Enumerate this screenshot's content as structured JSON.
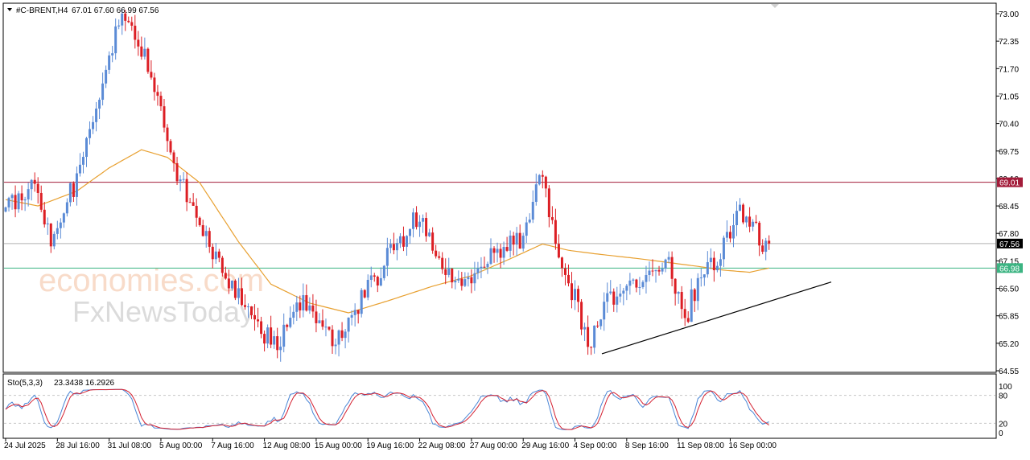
{
  "chart_header": {
    "symbol_timeframe": "#C-BRENT,H4",
    "ohlc": "67.01 67.60 66.99 67.56"
  },
  "indicator": {
    "name": "Sto(5,3,3)",
    "values": "23.3438 16.2926"
  },
  "watermark": {
    "line1": "economies.com",
    "line2": "FxNewsToday"
  },
  "colors": {
    "background": "#ffffff",
    "bull": "#5b8bd6",
    "bear": "#dc1e24",
    "ma": "#e8a030",
    "resistance": "#a31c3a",
    "current_price": "#b0b0b0",
    "support_ma_label": "#3cb482",
    "trendline": "#000000",
    "stoch_main": "#4a86d6",
    "stoch_signal": "#d42030",
    "grid_dash": "#c8c8c8"
  },
  "chart_data": {
    "type": "candlestick",
    "symbol": "#C-BRENT",
    "timeframe": "H4",
    "price_axis_ticks": [
      73.0,
      72.35,
      71.7,
      71.05,
      70.4,
      69.75,
      69.1,
      68.45,
      67.8,
      67.15,
      66.5,
      65.85,
      65.2,
      64.55
    ],
    "price_axis_labels": [
      "73.00",
      "72.35",
      "71.70",
      "71.05",
      "70.40",
      "69.75",
      "69.10",
      "68.45",
      "67.80",
      "67.15",
      "66.50",
      "65.85",
      "65.20",
      "64.55"
    ],
    "ylim": [
      64.55,
      73.05
    ],
    "time_labels": [
      "24 Jul 2025",
      "28 Jul 16:00",
      "31 Jul 08:00",
      "5 Aug 00:00",
      "7 Aug 16:00",
      "12 Aug 08:00",
      "15 Aug 00:00",
      "19 Aug 16:00",
      "22 Aug 08:00",
      "27 Aug 00:00",
      "29 Aug 16:00",
      "4 Sep 00:00",
      "8 Sep 16:00",
      "11 Sep 08:00",
      "16 Sep 00:00"
    ],
    "horizontal_lines": [
      {
        "price": 69.01,
        "label": "69.01",
        "role": "resistance"
      },
      {
        "price": 67.56,
        "label": "67.56",
        "role": "current"
      },
      {
        "price": 66.98,
        "label": "66.98",
        "role": "ma"
      }
    ],
    "trendline": {
      "from_price": 64.95,
      "to_price": 66.65
    },
    "price_path": [
      [
        0,
        68.3
      ],
      [
        8,
        69.0
      ],
      [
        14,
        67.7
      ],
      [
        24,
        69.4
      ],
      [
        28,
        71.0
      ],
      [
        36,
        72.9
      ],
      [
        44,
        71.8
      ],
      [
        52,
        69.3
      ],
      [
        60,
        68.1
      ],
      [
        66,
        67.0
      ],
      [
        74,
        66.0
      ],
      [
        84,
        65.1
      ],
      [
        92,
        66.3
      ],
      [
        100,
        65.3
      ],
      [
        106,
        65.7
      ],
      [
        118,
        67.2
      ],
      [
        128,
        68.3
      ],
      [
        134,
        67.2
      ],
      [
        142,
        66.5
      ],
      [
        150,
        67.2
      ],
      [
        160,
        67.7
      ],
      [
        166,
        69.3
      ],
      [
        170,
        67.4
      ],
      [
        176,
        66.3
      ],
      [
        180,
        65.0
      ],
      [
        186,
        66.2
      ],
      [
        196,
        66.5
      ],
      [
        204,
        67.3
      ],
      [
        210,
        65.7
      ],
      [
        214,
        66.7
      ],
      [
        220,
        67.2
      ],
      [
        226,
        68.3
      ],
      [
        232,
        67.9
      ],
      [
        236,
        67.2
      ]
    ],
    "ma_path": [
      [
        0,
        68.6
      ],
      [
        10,
        68.45
      ],
      [
        22,
        68.8
      ],
      [
        32,
        69.35
      ],
      [
        42,
        69.78
      ],
      [
        50,
        69.6
      ],
      [
        60,
        69.0
      ],
      [
        72,
        67.6
      ],
      [
        82,
        66.6
      ],
      [
        94,
        66.15
      ],
      [
        106,
        65.92
      ],
      [
        118,
        66.2
      ],
      [
        132,
        66.55
      ],
      [
        144,
        66.8
      ],
      [
        156,
        67.2
      ],
      [
        166,
        67.55
      ],
      [
        174,
        67.4
      ],
      [
        182,
        67.32
      ],
      [
        196,
        67.2
      ],
      [
        206,
        67.1
      ],
      [
        214,
        67.02
      ],
      [
        222,
        66.93
      ],
      [
        230,
        66.88
      ],
      [
        236,
        66.98
      ]
    ],
    "stochastic": {
      "name": "Sto(5,3,3)",
      "main_value": 23.3438,
      "signal_value": 16.2926,
      "levels": [
        20,
        80
      ],
      "axis_ticks": [
        100,
        80,
        20,
        0
      ]
    }
  }
}
